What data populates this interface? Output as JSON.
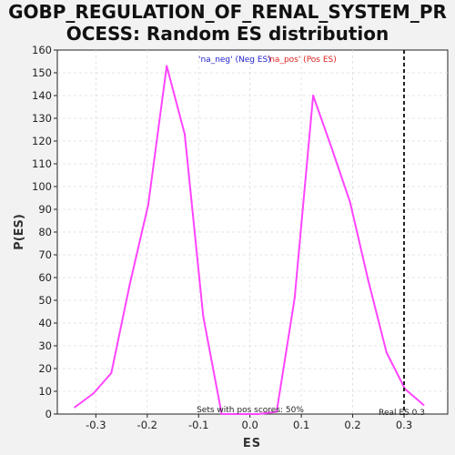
{
  "title_lines": [
    "GOBP_REGULATION_OF_RENAL_SYSTEM_PR",
    "OCESS: Random ES distribution"
  ],
  "chart_data": {
    "type": "line",
    "title": "GOBP_REGULATION_OF_RENAL_SYSTEM_PROCESS: Random ES distribution",
    "xlabel": "ES",
    "ylabel": "P(ES)",
    "xlim": [
      -0.375,
      0.385
    ],
    "ylim": [
      0,
      160
    ],
    "xticks": [
      -0.3,
      -0.2,
      -0.1,
      0.0,
      0.1,
      0.2,
      0.3
    ],
    "xtick_labels": [
      "-0.3",
      "-0.2",
      "-0.1",
      "0.0",
      "0.1",
      "0.2",
      "0.3"
    ],
    "yticks": [
      0,
      10,
      20,
      30,
      40,
      50,
      60,
      70,
      80,
      90,
      100,
      110,
      120,
      130,
      140,
      150,
      160
    ],
    "grid": true,
    "series": [
      {
        "color": "#ff44ff",
        "x": [
          -0.341,
          -0.305,
          -0.27,
          -0.234,
          -0.198,
          -0.162,
          -0.127,
          -0.091,
          -0.055,
          -0.02,
          0.016,
          0.052,
          0.087,
          0.123,
          0.159,
          0.195,
          0.23,
          0.266,
          0.302,
          0.338
        ],
        "y": [
          3,
          9,
          18,
          57,
          92,
          153,
          123,
          43,
          0,
          0,
          0,
          1,
          51,
          140,
          117,
          93,
          59,
          27,
          11,
          4
        ]
      }
    ],
    "legend": {
      "entries": [
        {
          "label": "'na_neg' (Neg ES)",
          "color": "#2222cc"
        },
        {
          "label": "'na_pos' (Pos ES)",
          "color": "#dd2222"
        }
      ]
    },
    "annotations": {
      "pos_scores": "Sets with pos scores: 50%",
      "real_es_label": "Real ES 0.3",
      "real_es_value": 0.3
    }
  }
}
